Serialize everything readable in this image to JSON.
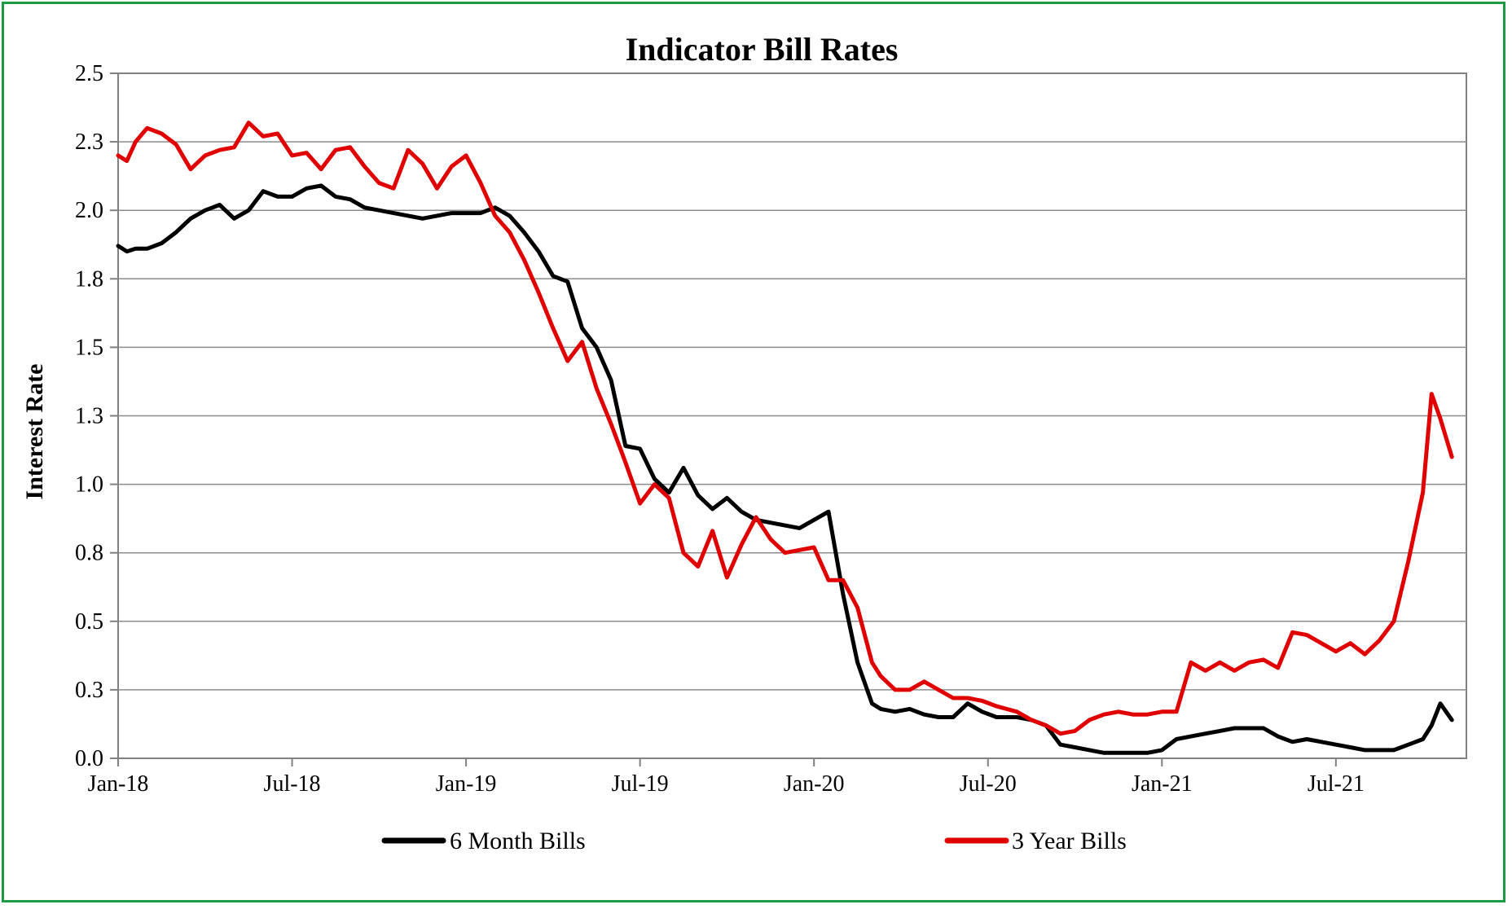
{
  "chart_data": {
    "type": "line",
    "title": "Indicator Bill Rates",
    "xlabel": "",
    "ylabel": "Interest Rate",
    "x_ticks": [
      "Jan-18",
      "Jul-18",
      "Jan-19",
      "Jul-19",
      "Jan-20",
      "Jul-20",
      "Jan-21",
      "Jul-21"
    ],
    "y_ticks": [
      "0.0",
      "0.3",
      "0.5",
      "0.8",
      "1.0",
      "1.3",
      "1.5",
      "1.8",
      "2.0",
      "2.3",
      "2.5"
    ],
    "ylim": [
      0,
      2.5
    ],
    "xlim_months": [
      0,
      46.5
    ],
    "grid": true,
    "legend_position": "bottom",
    "series": [
      {
        "name": "6 Month Bills",
        "color": "#000000",
        "x": [
          0,
          0.3,
          0.6,
          1,
          1.5,
          2,
          2.5,
          3,
          3.5,
          4,
          4.5,
          5,
          5.5,
          6,
          6.5,
          7,
          7.5,
          8,
          8.5,
          9,
          9.5,
          10,
          10.5,
          11,
          11.5,
          12,
          12.5,
          13,
          13.5,
          14,
          14.5,
          15,
          15.5,
          16,
          16.5,
          17,
          17.5,
          18,
          18.5,
          19,
          19.5,
          20,
          20.5,
          21,
          21.5,
          22,
          22.5,
          23,
          23.5,
          24,
          24.5,
          25,
          25.5,
          26,
          26.3,
          26.8,
          27.3,
          27.8,
          28.3,
          28.8,
          29.3,
          29.8,
          30.3,
          31,
          31.5,
          32,
          32.5,
          33,
          33.5,
          34,
          34.5,
          35,
          35.5,
          36,
          36.5,
          37,
          37.5,
          38,
          38.5,
          39,
          39.5,
          40,
          40.5,
          41,
          41.5,
          42,
          42.5,
          43,
          43.5,
          44,
          44.5,
          45,
          45.3,
          45.6,
          46
        ],
        "values": [
          1.87,
          1.85,
          1.86,
          1.86,
          1.88,
          1.92,
          1.97,
          2.0,
          2.02,
          1.97,
          2.0,
          2.07,
          2.05,
          2.05,
          2.08,
          2.09,
          2.05,
          2.04,
          2.01,
          2.0,
          1.99,
          1.98,
          1.97,
          1.98,
          1.99,
          1.99,
          1.99,
          2.01,
          1.98,
          1.92,
          1.85,
          1.76,
          1.74,
          1.57,
          1.5,
          1.38,
          1.14,
          1.13,
          1.02,
          0.97,
          1.06,
          0.96,
          0.91,
          0.95,
          0.9,
          0.87,
          0.86,
          0.85,
          0.84,
          0.87,
          0.9,
          0.6,
          0.35,
          0.2,
          0.18,
          0.17,
          0.18,
          0.16,
          0.15,
          0.15,
          0.2,
          0.17,
          0.15,
          0.15,
          0.14,
          0.12,
          0.05,
          0.04,
          0.03,
          0.02,
          0.02,
          0.02,
          0.02,
          0.03,
          0.07,
          0.08,
          0.09,
          0.1,
          0.11,
          0.11,
          0.11,
          0.08,
          0.06,
          0.07,
          0.06,
          0.05,
          0.04,
          0.03,
          0.03,
          0.03,
          0.05,
          0.07,
          0.12,
          0.2,
          0.14
        ]
      },
      {
        "name": "3 Year Bills",
        "color": "#e00000",
        "x": [
          0,
          0.3,
          0.6,
          1,
          1.5,
          2,
          2.5,
          3,
          3.5,
          4,
          4.5,
          5,
          5.5,
          6,
          6.5,
          7,
          7.5,
          8,
          8.5,
          9,
          9.5,
          10,
          10.5,
          11,
          11.5,
          12,
          12.5,
          13,
          13.5,
          14,
          14.5,
          15,
          15.5,
          16,
          16.5,
          17,
          17.5,
          18,
          18.5,
          19,
          19.5,
          20,
          20.5,
          21,
          21.5,
          22,
          22.5,
          23,
          23.5,
          24,
          24.5,
          25,
          25.5,
          26,
          26.3,
          26.8,
          27.3,
          27.8,
          28.3,
          28.8,
          29.3,
          29.8,
          30.3,
          31,
          31.5,
          32,
          32.5,
          33,
          33.5,
          34,
          34.5,
          35,
          35.5,
          36,
          36.5,
          37,
          37.5,
          38,
          38.5,
          39,
          39.5,
          40,
          40.5,
          41,
          41.5,
          42,
          42.5,
          43,
          43.5,
          44,
          44.5,
          45,
          45.3,
          45.6,
          46
        ],
        "values": [
          2.2,
          2.18,
          2.25,
          2.3,
          2.28,
          2.24,
          2.15,
          2.2,
          2.22,
          2.23,
          2.32,
          2.27,
          2.28,
          2.2,
          2.21,
          2.15,
          2.22,
          2.23,
          2.16,
          2.1,
          2.08,
          2.22,
          2.17,
          2.08,
          2.16,
          2.2,
          2.1,
          1.98,
          1.92,
          1.82,
          1.7,
          1.57,
          1.45,
          1.52,
          1.35,
          1.22,
          1.08,
          0.93,
          1.0,
          0.95,
          0.75,
          0.7,
          0.83,
          0.66,
          0.78,
          0.88,
          0.8,
          0.75,
          0.76,
          0.77,
          0.65,
          0.65,
          0.55,
          0.35,
          0.3,
          0.25,
          0.25,
          0.28,
          0.25,
          0.22,
          0.22,
          0.21,
          0.19,
          0.17,
          0.14,
          0.12,
          0.09,
          0.1,
          0.14,
          0.16,
          0.17,
          0.16,
          0.16,
          0.17,
          0.17,
          0.35,
          0.32,
          0.35,
          0.32,
          0.35,
          0.36,
          0.33,
          0.46,
          0.45,
          0.42,
          0.39,
          0.42,
          0.38,
          0.43,
          0.5,
          0.72,
          0.97,
          1.33,
          1.24,
          1.1
        ]
      }
    ]
  }
}
